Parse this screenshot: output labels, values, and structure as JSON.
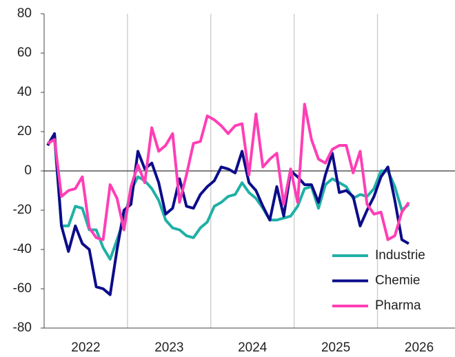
{
  "chart_data": {
    "type": "line",
    "x": [
      2022.042,
      2022.125,
      2022.208,
      2022.292,
      2022.375,
      2022.458,
      2022.542,
      2022.625,
      2022.708,
      2022.792,
      2022.875,
      2022.958,
      2023.042,
      2023.125,
      2023.208,
      2023.292,
      2023.375,
      2023.458,
      2023.542,
      2023.625,
      2023.708,
      2023.792,
      2023.875,
      2023.958,
      2024.042,
      2024.125,
      2024.208,
      2024.292,
      2024.375,
      2024.458,
      2024.542,
      2024.625,
      2024.708,
      2024.792,
      2024.875,
      2024.958,
      2025.042,
      2025.125,
      2025.208,
      2025.292,
      2025.375,
      2025.458,
      2025.542,
      2025.625,
      2025.708,
      2025.792,
      2025.875,
      2025.958,
      2026.042,
      2026.125,
      2026.208,
      2026.292,
      2026.375
    ],
    "series": [
      {
        "name": "Industrie",
        "color": "#1fb0a6",
        "values": [
          14,
          16,
          -28,
          -28,
          -18,
          -19,
          -30,
          -30,
          -39,
          -45,
          -35,
          -25,
          -10,
          -3,
          -5,
          -9,
          -15,
          -25,
          -29,
          -30,
          -33,
          -34,
          -29,
          -26,
          -18,
          -16,
          -13,
          -12,
          -6,
          -11,
          -14,
          -19,
          -25,
          -25,
          -24,
          -23,
          -18,
          -9,
          -8,
          -19,
          -7,
          -4,
          -6,
          -8,
          -14,
          -12,
          -13,
          -9,
          0,
          0,
          -8,
          -20,
          -17
        ]
      },
      {
        "name": "Chemie",
        "color": "#0c0c8a",
        "values": [
          13,
          19,
          -28,
          -41,
          -28,
          -37,
          -40,
          -59,
          -60,
          -63,
          -40,
          -20,
          -17,
          10,
          1,
          4,
          -6,
          -22,
          -19,
          -4,
          -18,
          -19,
          -12,
          -8,
          -5,
          2,
          1,
          -1,
          10,
          -6,
          -10,
          -18,
          -25,
          -8,
          -23,
          0,
          -3,
          -7,
          -7,
          -16,
          -2,
          9,
          -11,
          -10,
          -13,
          -28,
          -20,
          -13,
          -3,
          2,
          -15,
          -35,
          -37
        ]
      },
      {
        "name": "Pharma",
        "color": "#ff3eb5",
        "values": [
          14,
          16,
          -13,
          -10,
          -9,
          -3,
          -29,
          -34,
          -35,
          -7,
          -14,
          -30,
          -8,
          3,
          -6,
          22,
          10,
          13,
          19,
          -16,
          -2,
          14,
          15,
          28,
          26,
          23,
          19,
          23,
          24,
          -2,
          29,
          2,
          6,
          9,
          -17,
          1,
          -16,
          34,
          16,
          6,
          4,
          11,
          13,
          13,
          -1,
          10,
          -17,
          -22,
          -21,
          -35,
          -33,
          -21,
          -16
        ]
      }
    ],
    "xlim": [
      2022,
      2026.93
    ],
    "xticks": [
      {
        "value": 2022.5,
        "label": "2022"
      },
      {
        "value": 2023.5,
        "label": "2023"
      },
      {
        "value": 2024.5,
        "label": "2024"
      },
      {
        "value": 2025.5,
        "label": "2025"
      },
      {
        "value": 2026.5,
        "label": "2026"
      }
    ],
    "xgrid": [
      2023,
      2024,
      2025,
      2026
    ],
    "ylim": [
      -80,
      80
    ],
    "yticks": [
      -80,
      -60,
      -40,
      -20,
      0,
      20,
      40,
      60,
      80
    ],
    "legend": "lower right"
  }
}
